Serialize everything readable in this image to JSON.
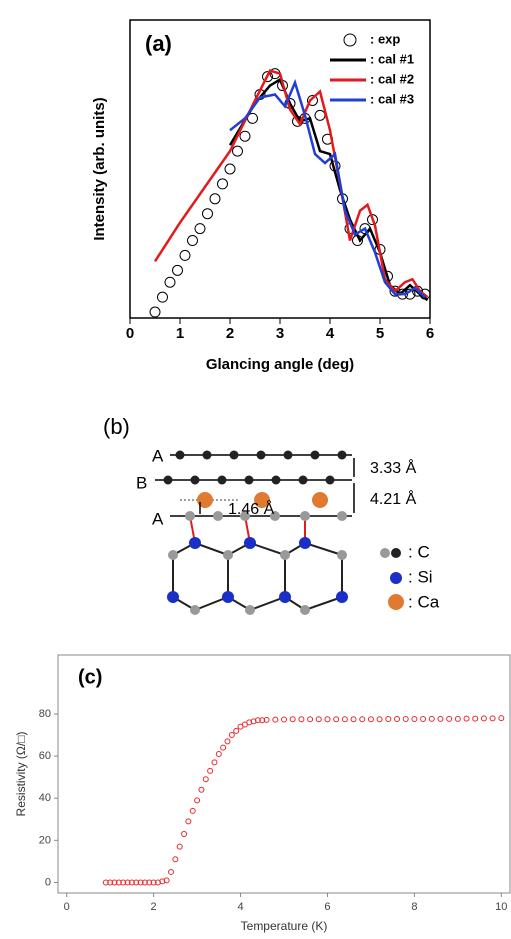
{
  "chart_data": [
    {
      "type": "line",
      "label": "(a)",
      "x_label": "Glancing angle (deg)",
      "y_label": "Intensity (arb. units)",
      "xlim": [
        0,
        6
      ],
      "xticks": [
        0,
        1,
        2,
        3,
        4,
        5,
        6
      ],
      "ylim": [
        0,
        1
      ],
      "legend": "upper right",
      "series": [
        {
          "name": ": exp",
          "color": "#000000",
          "mode": "markers",
          "x": [
            0.5,
            0.65,
            0.8,
            0.95,
            1.1,
            1.25,
            1.4,
            1.55,
            1.7,
            1.85,
            2.0,
            2.15,
            2.3,
            2.45,
            2.6,
            2.75,
            2.9,
            3.05,
            3.2,
            3.35,
            3.5,
            3.65,
            3.8,
            3.95,
            4.1,
            4.25,
            4.4,
            4.55,
            4.7,
            4.85,
            5.0,
            5.15,
            5.3,
            5.45,
            5.6,
            5.75,
            5.9
          ],
          "values": [
            0.02,
            0.07,
            0.12,
            0.16,
            0.21,
            0.26,
            0.3,
            0.35,
            0.4,
            0.45,
            0.5,
            0.56,
            0.61,
            0.67,
            0.75,
            0.81,
            0.82,
            0.78,
            0.72,
            0.66,
            0.67,
            0.73,
            0.68,
            0.6,
            0.51,
            0.4,
            0.3,
            0.26,
            0.3,
            0.33,
            0.23,
            0.14,
            0.09,
            0.08,
            0.08,
            0.09,
            0.08
          ]
        },
        {
          "name": ": cal #1",
          "color": "#000000",
          "mode": "line",
          "x": [
            2.0,
            2.5,
            2.8,
            3.0,
            3.2,
            3.4,
            3.6,
            3.8,
            4.0,
            4.2,
            4.4,
            4.6,
            4.8,
            5.0,
            5.2,
            5.4,
            5.6,
            5.8,
            5.95
          ],
          "values": [
            0.58,
            0.72,
            0.78,
            0.8,
            0.72,
            0.66,
            0.67,
            0.56,
            0.55,
            0.43,
            0.33,
            0.26,
            0.3,
            0.22,
            0.11,
            0.08,
            0.11,
            0.08,
            0.06
          ]
        },
        {
          "name": ": cal #2",
          "color": "#e31a1c",
          "mode": "line",
          "x": [
            0.5,
            1.0,
            1.5,
            2.0,
            2.5,
            2.8,
            3.0,
            3.2,
            3.4,
            3.6,
            3.8,
            4.0,
            4.2,
            4.4,
            4.6,
            4.75,
            4.9,
            5.1,
            5.3,
            5.5,
            5.65,
            5.8,
            5.95
          ],
          "values": [
            0.19,
            0.32,
            0.44,
            0.56,
            0.73,
            0.83,
            0.82,
            0.7,
            0.65,
            0.73,
            0.76,
            0.63,
            0.45,
            0.26,
            0.36,
            0.38,
            0.31,
            0.13,
            0.09,
            0.12,
            0.13,
            0.09,
            0.07
          ]
        },
        {
          "name": ": cal #3",
          "color": "#1f3fd6",
          "mode": "line",
          "x": [
            2.0,
            2.3,
            2.6,
            2.9,
            3.1,
            3.3,
            3.5,
            3.7,
            3.9,
            4.1,
            4.3,
            4.5,
            4.7,
            4.9,
            5.1,
            5.3,
            5.5,
            5.7,
            5.9
          ],
          "values": [
            0.63,
            0.67,
            0.74,
            0.75,
            0.71,
            0.79,
            0.68,
            0.55,
            0.52,
            0.55,
            0.36,
            0.28,
            0.3,
            0.22,
            0.12,
            0.08,
            0.08,
            0.1,
            0.07
          ]
        }
      ]
    },
    {
      "type": "scatter",
      "label": "(c)",
      "x_label": "Temperature (K)",
      "y_label": "Resistivity (Ω/□)",
      "xlim": [
        -0.2,
        10.2
      ],
      "xticks": [
        0,
        2,
        4,
        6,
        8,
        10
      ],
      "ylim": [
        -5,
        108
      ],
      "yticks": [
        0,
        20,
        40,
        60,
        80
      ],
      "color": "#e8282a",
      "x": [
        0.9,
        1.0,
        1.1,
        1.2,
        1.3,
        1.4,
        1.5,
        1.6,
        1.7,
        1.8,
        1.9,
        2.0,
        2.1,
        2.2,
        2.3,
        2.4,
        2.5,
        2.6,
        2.7,
        2.8,
        2.9,
        3.0,
        3.1,
        3.2,
        3.3,
        3.4,
        3.5,
        3.6,
        3.7,
        3.8,
        3.9,
        4.0,
        4.1,
        4.2,
        4.3,
        4.4,
        4.5,
        4.6,
        4.8,
        5.0,
        5.2,
        5.4,
        5.6,
        5.8,
        6.0,
        6.2,
        6.4,
        6.6,
        6.8,
        7.0,
        7.2,
        7.4,
        7.6,
        7.8,
        8.0,
        8.2,
        8.4,
        8.6,
        8.8,
        9.0,
        9.2,
        9.4,
        9.6,
        9.8,
        10.0
      ],
      "values": [
        0,
        0,
        0,
        0,
        0,
        0,
        0,
        0,
        0,
        0,
        0,
        0,
        0,
        0.5,
        1,
        5,
        11,
        17,
        23,
        29,
        34,
        39,
        44,
        49,
        53,
        57,
        61,
        64,
        67,
        70,
        72,
        74,
        75,
        76,
        76.5,
        77,
        77,
        77.2,
        77.3,
        77.4,
        77.5,
        77.5,
        77.5,
        77.5,
        77.5,
        77.5,
        77.5,
        77.5,
        77.5,
        77.5,
        77.5,
        77.6,
        77.6,
        77.6,
        77.6,
        77.6,
        77.7,
        77.7,
        77.7,
        77.7,
        77.8,
        77.8,
        77.9,
        77.9,
        78
      ]
    }
  ],
  "diagram": {
    "label": "(b)",
    "layers": [
      "A",
      "B",
      "A"
    ],
    "spacings": [
      "3.33 Å",
      "4.21 Å",
      "1.46 Å"
    ],
    "legend": [
      ": C",
      ": Si",
      ": Ca"
    ]
  }
}
